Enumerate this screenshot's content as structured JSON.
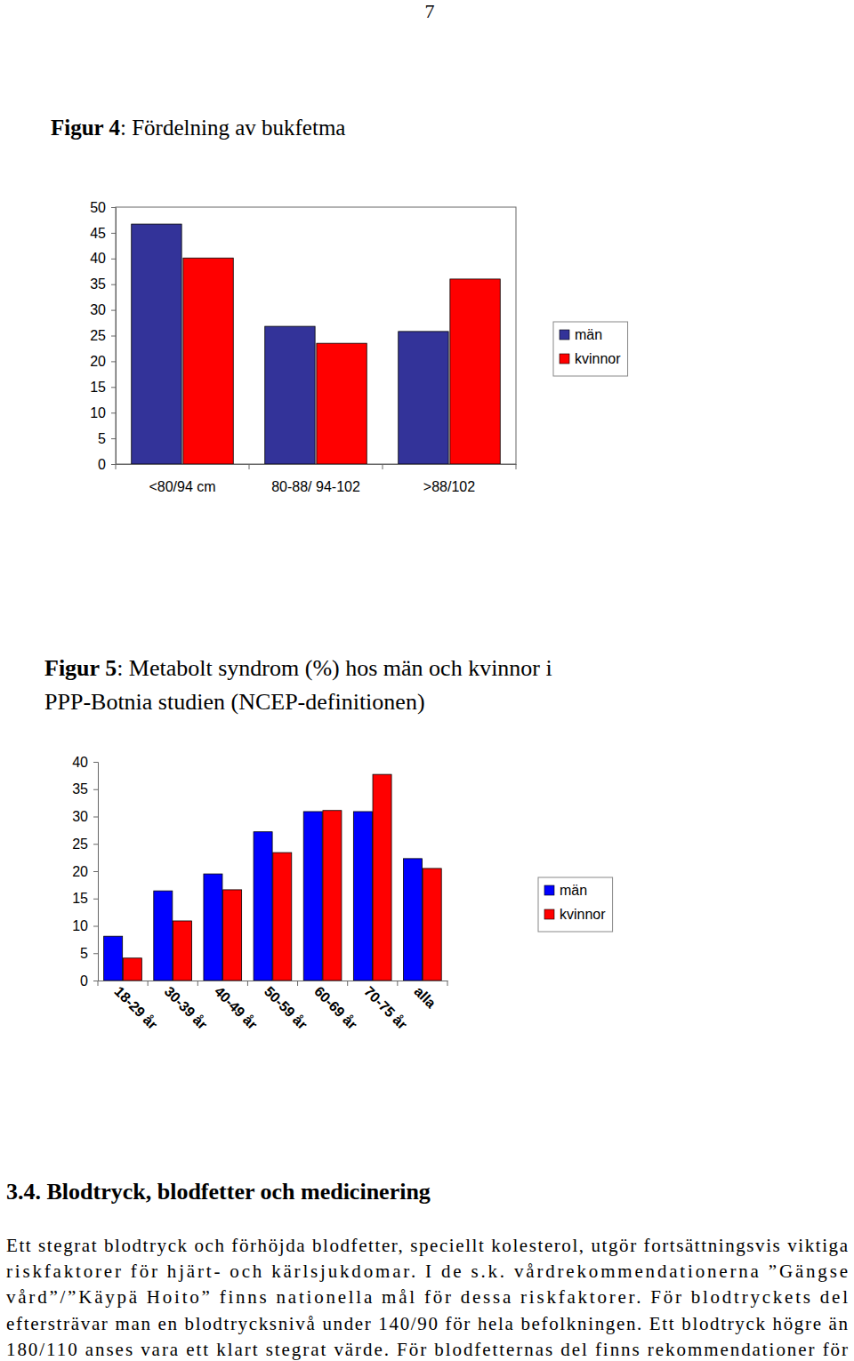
{
  "page_number": "7",
  "chart_data": [
    {
      "type": "bar",
      "title": "Figur 4: Fördelning av bukfetma",
      "categories": [
        "<80/94 cm",
        "80-88/ 94-102",
        ">88/102"
      ],
      "series": [
        {
          "name": "män",
          "color": "#333399",
          "values": [
            46.7,
            26.8,
            25.8
          ]
        },
        {
          "name": "kvinnor",
          "color": "#ff0000",
          "values": [
            40.1,
            23.5,
            36
          ]
        }
      ],
      "ylim": [
        0,
        50
      ],
      "yticks": [
        0,
        5,
        10,
        15,
        20,
        25,
        30,
        35,
        40,
        45,
        50
      ],
      "grid": false,
      "legend": "right"
    },
    {
      "type": "bar",
      "title": "Figur 5: Metabolt syndrom (%) hos män och kvinnor i\nPPP-Botnia studien (NCEP-definitionen)",
      "categories": [
        "18-29 år",
        "30-39 år",
        "40-49 år",
        "50-59 år",
        "60-69 år",
        "70-75 år",
        "alla"
      ],
      "series": [
        {
          "name": "män",
          "color": "#0000ff",
          "values": [
            8.1,
            16.4,
            19.5,
            27.2,
            30.9,
            30.9,
            22.3
          ]
        },
        {
          "name": "kvinnor",
          "color": "#ff0000",
          "values": [
            4.1,
            10.9,
            16.6,
            23.4,
            31.1,
            37.7,
            20.5
          ]
        }
      ],
      "ylim": [
        0,
        40
      ],
      "yticks": [
        0,
        5,
        10,
        15,
        20,
        25,
        30,
        35,
        40
      ],
      "grid": false,
      "legend": "right"
    }
  ],
  "section_heading": "3.4. Blodtryck, blodfetter och medicinering",
  "paragraph": [
    "Ett stegrat blodtryck och förhöjda blodfetter, speciellt kolesterol, utgör fortsättningsvis viktiga",
    "riskfaktorer för hjärt- och kärlsjukdomar. I de s.k. vårdrekommendationerna ”Gängse",
    "vård”/”Käypä Hoito” finns nationella mål för dessa riskfaktorer. För blodtryckets del",
    "eftersträvar man en blodtrycksnivå under 140/90 för hela befolkningen. Ett blodtryck högre än",
    "180/110 anses vara ett klart stegrat värde. För blodfetternas del finns rekommendationer för"
  ]
}
